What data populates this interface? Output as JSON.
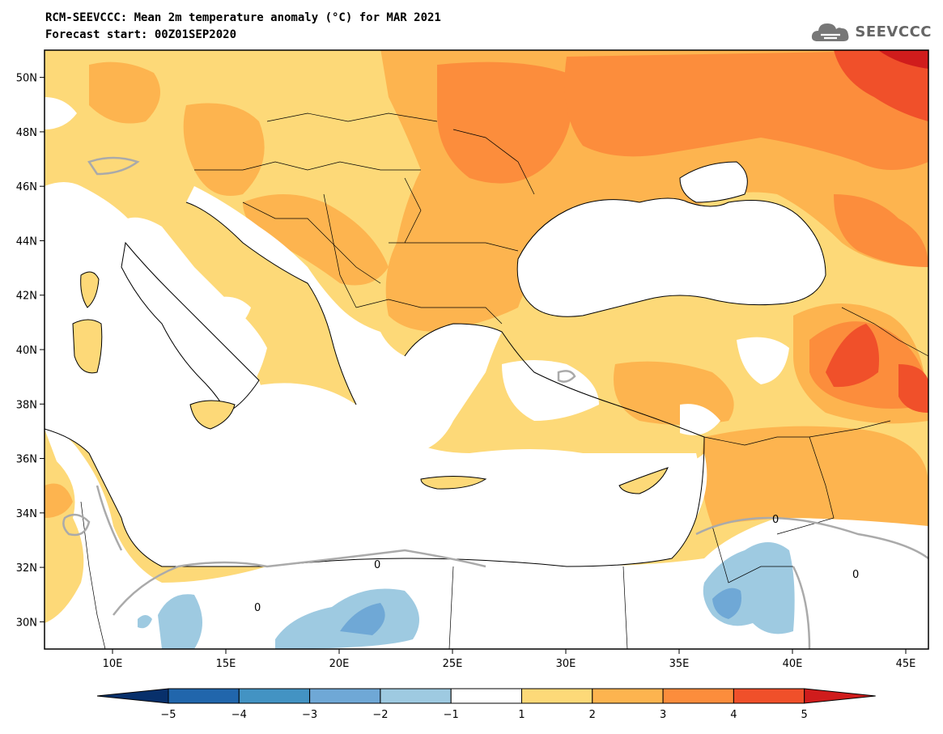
{
  "title": "RCM-SEEVCCC: Mean 2m temperature anomaly (°C) for MAR 2021",
  "subtitle": "Forecast start: 00Z01SEP2020",
  "logo": {
    "text": "SEEVCCC",
    "icon": "cloud-icon"
  },
  "map_extent": {
    "lon_min": 7,
    "lon_max": 46,
    "lat_min": 29,
    "lat_max": 51
  },
  "lat_ticks": [
    {
      "value": 50,
      "label": "50N"
    },
    {
      "value": 48,
      "label": "48N"
    },
    {
      "value": 46,
      "label": "46N"
    },
    {
      "value": 44,
      "label": "44N"
    },
    {
      "value": 42,
      "label": "42N"
    },
    {
      "value": 40,
      "label": "40N"
    },
    {
      "value": 38,
      "label": "38N"
    },
    {
      "value": 36,
      "label": "36N"
    },
    {
      "value": 34,
      "label": "34N"
    },
    {
      "value": 32,
      "label": "32N"
    },
    {
      "value": 30,
      "label": "30N"
    }
  ],
  "lon_ticks": [
    {
      "value": 10,
      "label": "10E"
    },
    {
      "value": 15,
      "label": "15E"
    },
    {
      "value": 20,
      "label": "20E"
    },
    {
      "value": 25,
      "label": "25E"
    },
    {
      "value": 30,
      "label": "30E"
    },
    {
      "value": 35,
      "label": "35E"
    },
    {
      "value": 40,
      "label": "40E"
    },
    {
      "value": 45,
      "label": "45E"
    }
  ],
  "contour_label": "0",
  "colorbar": {
    "colors": [
      "#08306b",
      "#2166ac",
      "#4393c3",
      "#6fa8d6",
      "#9ecae1",
      "#ffffff",
      "#fdd978",
      "#fdb44f",
      "#fc8d3c",
      "#f0502a",
      "#d01c1c"
    ],
    "tick_labels": [
      "−5",
      "−4",
      "−3",
      "−2",
      "−1",
      "1",
      "2",
      "3",
      "4",
      "5"
    ]
  }
}
